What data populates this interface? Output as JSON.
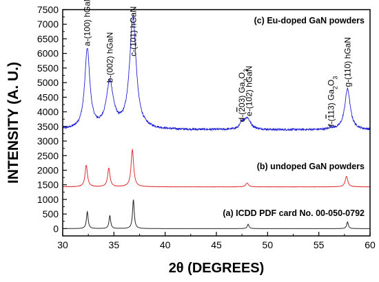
{
  "chart_data": {
    "type": "line",
    "xlabel": "2θ (DEGREES)",
    "ylabel": "INTENSITY (A. U.)",
    "xlim": [
      30,
      60
    ],
    "ylim": [
      -250,
      7500
    ],
    "x_ticks": [
      30,
      35,
      40,
      45,
      50,
      55,
      60
    ],
    "y_ticks": [
      0,
      500,
      1000,
      1500,
      2000,
      2500,
      3000,
      3500,
      4000,
      4500,
      5000,
      5500,
      6000,
      6500,
      7000,
      7500
    ],
    "grid": false,
    "series": [
      {
        "name": "(c) Eu-doped GaN powders",
        "color": "#1f1fd6",
        "baseline": 3380,
        "noise": 35,
        "peaks": [
          {
            "x": 32.4,
            "height": 2720,
            "width": 0.3
          },
          {
            "x": 34.6,
            "height": 1560,
            "width": 0.42
          },
          {
            "x": 36.85,
            "height": 3850,
            "width": 0.38
          },
          {
            "x": 47.5,
            "height": 180,
            "width": 0.2
          },
          {
            "x": 48.0,
            "height": 400,
            "width": 0.4
          },
          {
            "x": 56.2,
            "height": 60,
            "width": 0.2
          },
          {
            "x": 57.8,
            "height": 1400,
            "width": 0.32
          }
        ]
      },
      {
        "name": "(b) undoped GaN powders",
        "color": "#e03030",
        "baseline": 1430,
        "noise": 4,
        "peaks": [
          {
            "x": 32.3,
            "height": 740,
            "width": 0.14
          },
          {
            "x": 34.5,
            "height": 640,
            "width": 0.14
          },
          {
            "x": 36.8,
            "height": 1270,
            "width": 0.15
          },
          {
            "x": 48.0,
            "height": 130,
            "width": 0.16
          },
          {
            "x": 57.7,
            "height": 360,
            "width": 0.15
          }
        ]
      },
      {
        "name": "(a) ICDD PDF card No. 00-050-0792",
        "color": "#222222",
        "baseline": 0,
        "noise": 0,
        "peaks": [
          {
            "x": 32.4,
            "height": 580,
            "width": 0.1
          },
          {
            "x": 34.6,
            "height": 440,
            "width": 0.1
          },
          {
            "x": 36.9,
            "height": 990,
            "width": 0.1
          },
          {
            "x": 48.1,
            "height": 150,
            "width": 0.1
          },
          {
            "x": 57.8,
            "height": 230,
            "width": 0.1
          }
        ]
      }
    ],
    "peak_annotations": [
      {
        "x": 32.4,
        "y": 6250,
        "letter": "a-",
        "pre": "(100)",
        "post": " hGaN"
      },
      {
        "x": 34.6,
        "y": 5000,
        "letter": "b-",
        "pre": "(002)",
        "post": " hGaN"
      },
      {
        "x": 36.9,
        "y": 5900,
        "letter": "c-",
        "pre": "(101)",
        "post": " hGaN"
      },
      {
        "x": 47.5,
        "y": 3650,
        "letter": "d-",
        "pre": "(",
        "bar": "2",
        "rest": "03)",
        "post": " Ga",
        "sub": "2",
        "post2": "O",
        "sub2": "3"
      },
      {
        "x": 48.2,
        "y": 3850,
        "letter": "e-",
        "pre": "(102)",
        "post": " hGaN"
      },
      {
        "x": 56.2,
        "y": 3500,
        "letter": "f-",
        "pre": "(",
        "bar": "1",
        "rest": "13)",
        "post": " Ga",
        "sub": "2",
        "post2": "O",
        "sub2": "3"
      },
      {
        "x": 57.8,
        "y": 4850,
        "letter": "g-",
        "pre": "(110)",
        "post": " hGaN"
      }
    ]
  }
}
